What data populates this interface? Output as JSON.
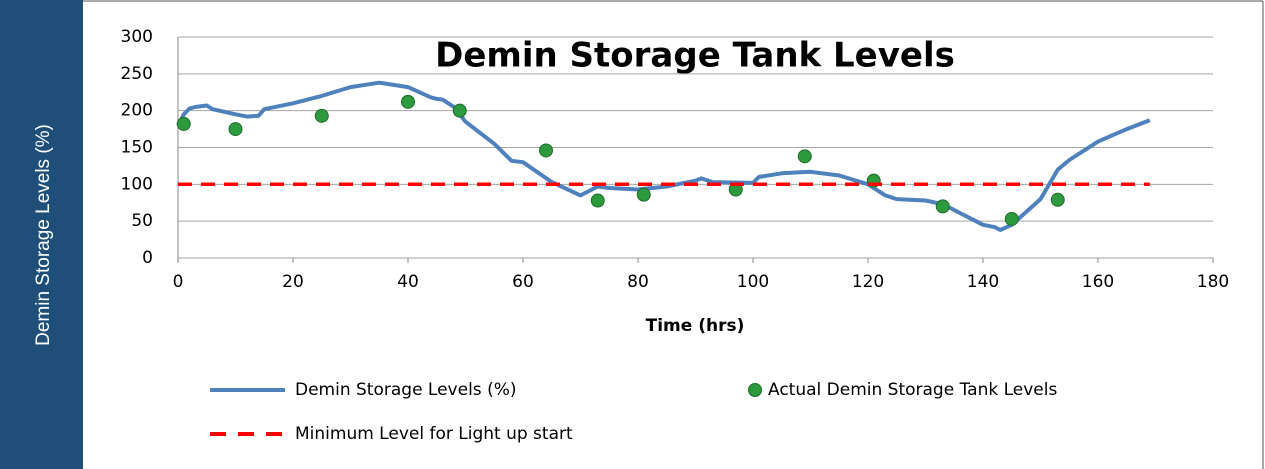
{
  "chart_data": {
    "type": "line",
    "title": "Demin Storage Tank Levels",
    "x_label": "Time (hrs)",
    "y_label": "Demin Storage Levels (%)",
    "xlim": [
      0,
      180
    ],
    "xticks": [
      0,
      20,
      40,
      60,
      80,
      100,
      120,
      140,
      160,
      180
    ],
    "ylim": [
      0,
      300
    ],
    "yticks": [
      0,
      50,
      100,
      150,
      200,
      250,
      300
    ],
    "grid": true,
    "legend": "bottom",
    "series": [
      {
        "name": "Demin Storage Levels (%)",
        "type": "line",
        "color": "#4f81bd",
        "x": [
          0,
          1,
          2,
          3,
          5,
          6,
          10,
          12,
          14,
          15,
          20,
          25,
          30,
          35,
          40,
          44,
          45,
          46,
          48,
          50,
          55,
          58,
          60,
          65,
          70,
          73,
          75,
          80,
          85,
          90,
          91,
          93,
          100,
          101,
          105,
          110,
          115,
          120,
          123,
          125,
          130,
          133,
          135,
          140,
          142,
          143,
          145,
          150,
          153,
          155,
          160,
          165,
          169
        ],
        "values": [
          180,
          195,
          203,
          205,
          207,
          202,
          195,
          192,
          193,
          202,
          210,
          220,
          232,
          238,
          232,
          218,
          216,
          215,
          205,
          185,
          155,
          132,
          130,
          103,
          85,
          97,
          95,
          93,
          97,
          105,
          108,
          103,
          102,
          110,
          115,
          117,
          112,
          100,
          85,
          80,
          78,
          73,
          65,
          45,
          42,
          38,
          45,
          80,
          120,
          133,
          158,
          175,
          187
        ]
      },
      {
        "name": "Actual Demin Storage Tank Levels",
        "type": "scatter",
        "color": "#2e9a3e",
        "x": [
          1,
          10,
          25,
          40,
          49,
          64,
          73,
          81,
          97,
          109,
          121,
          133,
          145,
          153
        ],
        "values": [
          182,
          175,
          193,
          212,
          200,
          146,
          78,
          86,
          93,
          138,
          105,
          70,
          53,
          79
        ]
      },
      {
        "name": "Minimum Level for Light up start",
        "type": "dashed",
        "color": "#ff0000",
        "x": [
          0,
          169
        ],
        "values": [
          100,
          100
        ]
      }
    ]
  }
}
